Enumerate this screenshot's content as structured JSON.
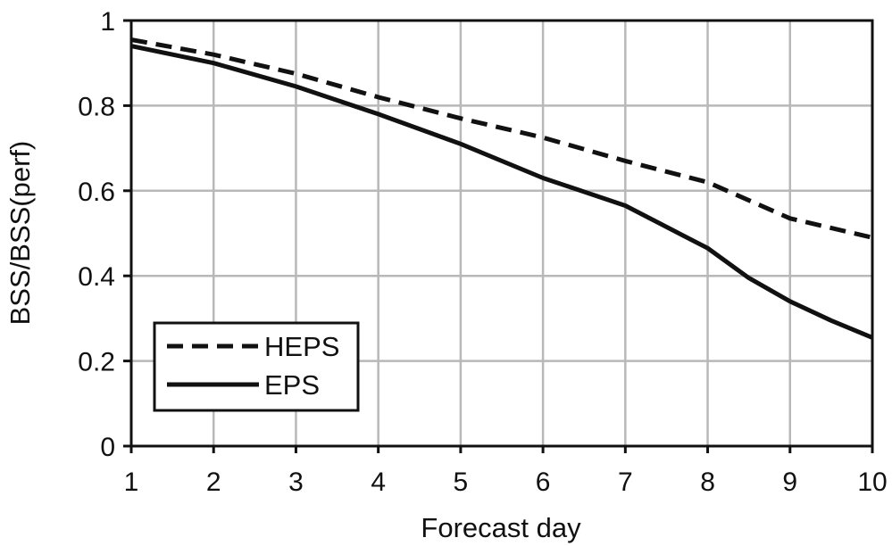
{
  "chart_data": {
    "type": "line",
    "title": "",
    "xlabel": "Forecast day",
    "ylabel": "BSS/BSS(perf)",
    "xlim": [
      1,
      10
    ],
    "ylim": [
      0,
      1
    ],
    "x_ticks": [
      1,
      2,
      3,
      4,
      5,
      6,
      7,
      8,
      9,
      10
    ],
    "x_tick_labels": [
      "1",
      "2",
      "3",
      "4",
      "5",
      "6",
      "7",
      "8",
      "9",
      "10"
    ],
    "y_ticks": [
      0,
      0.2,
      0.4,
      0.6,
      0.8,
      1
    ],
    "y_tick_labels": [
      "0",
      "0.2",
      "0.4",
      "0.6",
      "0.8",
      "1"
    ],
    "grid": true,
    "legend_position": "bottom-left",
    "series": [
      {
        "name": "HEPS",
        "style": "dashed",
        "color": "#111111",
        "x": [
          1,
          2,
          3,
          4,
          5,
          6,
          7,
          8,
          9,
          10
        ],
        "values": [
          0.955,
          0.92,
          0.875,
          0.82,
          0.77,
          0.725,
          0.67,
          0.62,
          0.535,
          0.49
        ]
      },
      {
        "name": "EPS",
        "style": "solid",
        "color": "#111111",
        "x": [
          1,
          2,
          3,
          4,
          5,
          6,
          7,
          8,
          8.5,
          9,
          9.5,
          10
        ],
        "values": [
          0.94,
          0.9,
          0.845,
          0.78,
          0.71,
          0.63,
          0.565,
          0.465,
          0.395,
          0.34,
          0.295,
          0.255
        ]
      }
    ]
  }
}
